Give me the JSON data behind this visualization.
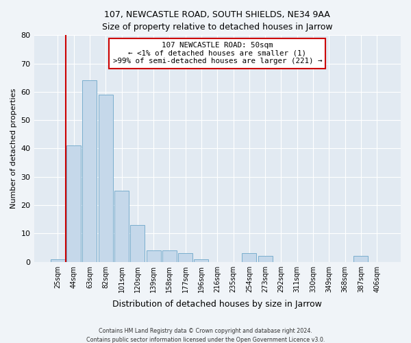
{
  "title1": "107, NEWCASTLE ROAD, SOUTH SHIELDS, NE34 9AA",
  "title2": "Size of property relative to detached houses in Jarrow",
  "xlabel": "Distribution of detached houses by size in Jarrow",
  "ylabel": "Number of detached properties",
  "bar_labels": [
    "25sqm",
    "44sqm",
    "63sqm",
    "82sqm",
    "101sqm",
    "120sqm",
    "139sqm",
    "158sqm",
    "177sqm",
    "196sqm",
    "216sqm",
    "235sqm",
    "254sqm",
    "273sqm",
    "292sqm",
    "311sqm",
    "330sqm",
    "349sqm",
    "368sqm",
    "387sqm",
    "406sqm"
  ],
  "bar_heights": [
    1,
    41,
    64,
    59,
    25,
    13,
    4,
    4,
    3,
    1,
    0,
    0,
    3,
    2,
    0,
    0,
    0,
    0,
    0,
    2,
    0
  ],
  "bar_color": "#c5d8ea",
  "bar_edge_color": "#7aaece",
  "vline_x_index": 1,
  "vline_color": "#cc0000",
  "annotation_line1": "107 NEWCASTLE ROAD: 50sqm",
  "annotation_line2": "← <1% of detached houses are smaller (1)",
  "annotation_line3": ">99% of semi-detached houses are larger (221) →",
  "annotation_box_color": "#ffffff",
  "annotation_box_edgecolor": "#cc0000",
  "ylim": [
    0,
    80
  ],
  "yticks": [
    0,
    10,
    20,
    30,
    40,
    50,
    60,
    70,
    80
  ],
  "footer1": "Contains HM Land Registry data © Crown copyright and database right 2024.",
  "footer2": "Contains public sector information licensed under the Open Government Licence v3.0.",
  "background_color": "#f0f4f8",
  "plot_bg_color": "#e2eaf2"
}
